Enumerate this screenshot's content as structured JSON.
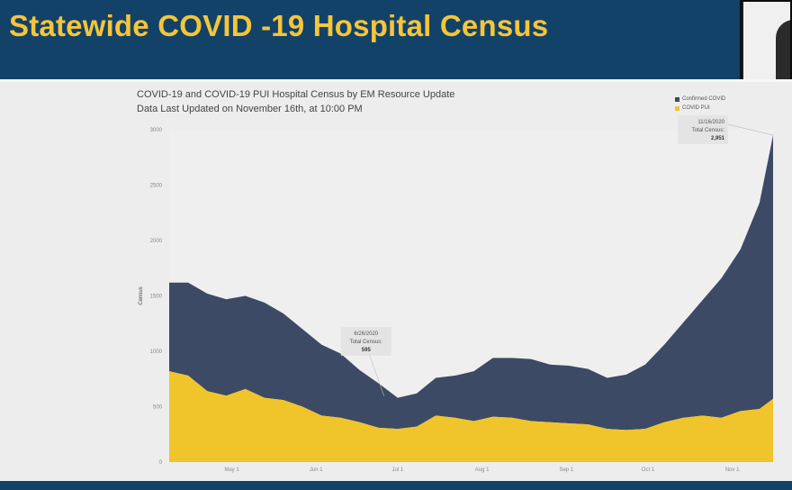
{
  "banner": {
    "title": "Statewide COVID -19 Hospital Census"
  },
  "chart_data": {
    "type": "area",
    "title": "COVID-19 and COVID-19 PUI Hospital Census by EM Resource Update",
    "subtitle": "Data Last Updated on November 16th, at 10:00 PM",
    "ylabel": "Census",
    "xlabel": "",
    "ylim": [
      0,
      3000
    ],
    "yticks": [
      0,
      500,
      1000,
      1500,
      2000,
      2500,
      3000
    ],
    "x_range": [
      "2020-04-08",
      "2020-11-16"
    ],
    "xtick_labels": [
      "May 1",
      "Jun 1",
      "Jul 1",
      "Aug 1",
      "Sep 1",
      "Oct 1",
      "Nov 1"
    ],
    "xtick_dates": [
      "2020-05-01",
      "2020-06-01",
      "2020-07-01",
      "2020-08-01",
      "2020-09-01",
      "2020-10-01",
      "2020-11-01"
    ],
    "stacked": true,
    "legend_position": "top-right",
    "grid": false,
    "series": [
      {
        "name": "Confirmed COVID",
        "color": "#3d4a66",
        "x": [
          "2020-04-08",
          "2020-04-15",
          "2020-04-22",
          "2020-04-29",
          "2020-05-06",
          "2020-05-13",
          "2020-05-20",
          "2020-05-27",
          "2020-06-03",
          "2020-06-10",
          "2020-06-17",
          "2020-06-24",
          "2020-07-01",
          "2020-07-08",
          "2020-07-15",
          "2020-07-22",
          "2020-07-29",
          "2020-08-05",
          "2020-08-12",
          "2020-08-19",
          "2020-08-26",
          "2020-09-02",
          "2020-09-09",
          "2020-09-16",
          "2020-09-23",
          "2020-09-30",
          "2020-10-07",
          "2020-10-14",
          "2020-10-21",
          "2020-10-28",
          "2020-11-04",
          "2020-11-11",
          "2020-11-16"
        ],
        "values": [
          800,
          840,
          880,
          870,
          840,
          860,
          780,
          700,
          640,
          580,
          470,
          400,
          280,
          300,
          340,
          380,
          450,
          530,
          540,
          560,
          520,
          520,
          500,
          460,
          500,
          580,
          700,
          860,
          1040,
          1260,
          1460,
          1860,
          2380
        ]
      },
      {
        "name": "COVID PUI",
        "color": "#f0c42b",
        "x": [
          "2020-04-08",
          "2020-04-15",
          "2020-04-22",
          "2020-04-29",
          "2020-05-06",
          "2020-05-13",
          "2020-05-20",
          "2020-05-27",
          "2020-06-03",
          "2020-06-10",
          "2020-06-17",
          "2020-06-24",
          "2020-07-01",
          "2020-07-08",
          "2020-07-15",
          "2020-07-22",
          "2020-07-29",
          "2020-08-05",
          "2020-08-12",
          "2020-08-19",
          "2020-08-26",
          "2020-09-02",
          "2020-09-09",
          "2020-09-16",
          "2020-09-23",
          "2020-09-30",
          "2020-10-07",
          "2020-10-14",
          "2020-10-21",
          "2020-10-28",
          "2020-11-04",
          "2020-11-11",
          "2020-11-16"
        ],
        "values": [
          820,
          780,
          640,
          600,
          660,
          580,
          560,
          500,
          420,
          400,
          360,
          310,
          300,
          320,
          420,
          400,
          370,
          410,
          400,
          370,
          360,
          350,
          340,
          300,
          290,
          300,
          360,
          400,
          420,
          400,
          460,
          480,
          571
        ]
      }
    ],
    "annotations": [
      {
        "date_label": "6/26/2020",
        "label": "Total Census:",
        "value": "595",
        "x": "2020-06-26",
        "y": 595
      },
      {
        "date_label": "11/16/2020",
        "label": "Total Census:",
        "value": "2,951",
        "x": "2020-11-16",
        "y": 2951
      }
    ]
  }
}
